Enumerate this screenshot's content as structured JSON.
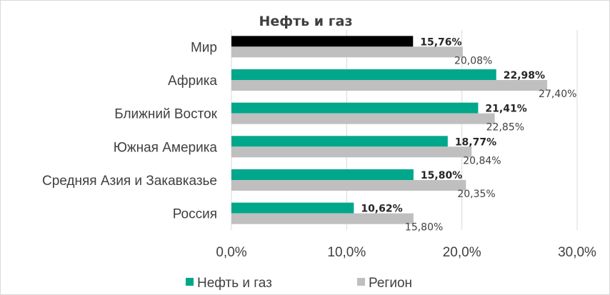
{
  "chart_data": {
    "type": "bar",
    "orientation": "horizontal",
    "title": "Нефть и газ",
    "categories": [
      "Мир",
      "Африка",
      "Ближний Восток",
      "Южная Америка",
      "Средняя Азия и Закавказье",
      "Россия"
    ],
    "series": [
      {
        "name": "Нефть и газ",
        "values": [
          15.76,
          22.98,
          21.41,
          18.77,
          15.8,
          10.62
        ],
        "labels": [
          "15,76%",
          "22,98%",
          "21,41%",
          "18,77%",
          "15,80%",
          "10,62%"
        ],
        "color": "#00a78a",
        "highlight_color": "#000000"
      },
      {
        "name": "Регион",
        "values": [
          20.08,
          27.4,
          22.85,
          20.84,
          20.35,
          15.8
        ],
        "labels": [
          "20,08%",
          "27,40%",
          "22,85%",
          "20,84%",
          "20,35%",
          "15,80%"
        ],
        "color": "#bfbfbf"
      }
    ],
    "xlim": [
      0,
      30
    ],
    "xticks": [
      0,
      10,
      20,
      30
    ],
    "xtick_labels": [
      "0,0%",
      "10,0%",
      "20,0%",
      "30,0%"
    ],
    "grid": "vertical",
    "legend": "bottom"
  }
}
